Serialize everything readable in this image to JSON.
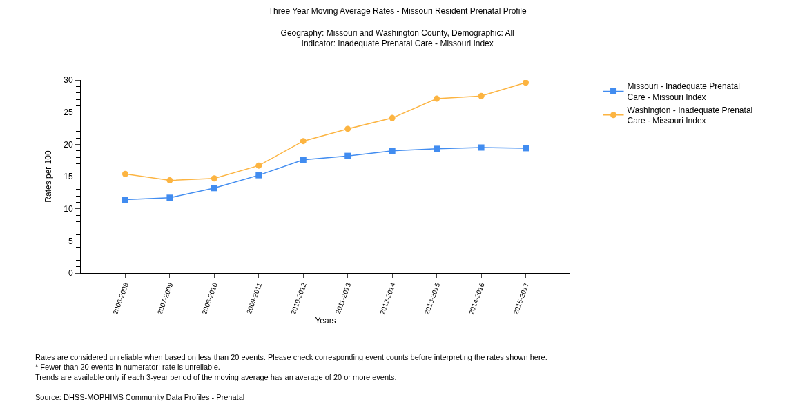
{
  "chart_data": {
    "type": "line",
    "title": "Three Year Moving Average Rates - Missouri Resident Prenatal Profile",
    "subtitle": "Geography: Missouri and Washington County, Demographic: All\nIndicator: Inadequate Prenatal Care - Missouri Index",
    "xlabel": "Years",
    "ylabel": "Rates per 100",
    "categories": [
      "2006-2008",
      "2007-2009",
      "2008-2010",
      "2009-2011",
      "2010-2012",
      "2011-2013",
      "2012-2014",
      "2013-2015",
      "2014-2016",
      "2015-2017"
    ],
    "series": [
      {
        "name": "Missouri - Inadequate Prenatal\nCare - Missouri Index",
        "color": "#418cf0",
        "marker": "square",
        "values": [
          11.4,
          11.7,
          13.2,
          15.2,
          17.6,
          18.2,
          19.0,
          19.3,
          19.5,
          19.4
        ]
      },
      {
        "name": "Washington - Inadequate Prenatal\nCare - Missouri Index",
        "color": "#fcb441",
        "marker": "circle",
        "values": [
          15.4,
          14.4,
          14.7,
          16.7,
          20.5,
          22.4,
          24.1,
          27.1,
          27.5,
          29.6
        ]
      }
    ],
    "ylim": [
      0,
      30
    ],
    "yticks": [
      0,
      5,
      10,
      15,
      20,
      25,
      30
    ],
    "legend": "top right",
    "line_style": "solid",
    "annotations": [
      "Rates are considered unreliable when based on less than 20 events. Please check corresponding event counts before interpreting the rates shown here.\n* Fewer than 20 events in numerator; rate is unreliable.\nTrends are available only if each 3-year period of the moving average has an average of 20 or more events.",
      "Source: DHSS-MOPHIMS Community Data Profiles - Prenatal"
    ]
  }
}
